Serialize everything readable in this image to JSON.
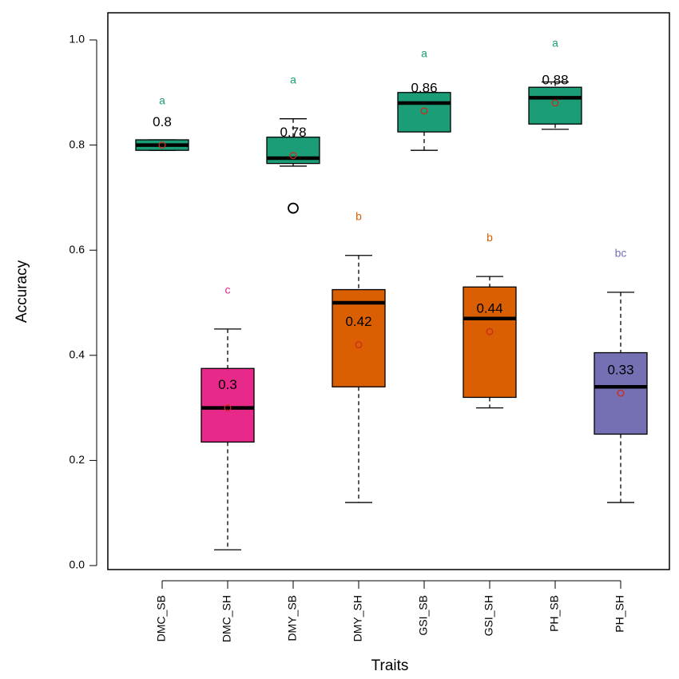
{
  "chart_data": {
    "type": "box",
    "xlabel": "Traits",
    "ylabel": "Accuracy",
    "ylim": [
      0,
      1.0
    ],
    "yticks": [
      "0.0",
      "0.2",
      "0.4",
      "0.6",
      "0.8",
      "1.0"
    ],
    "grid": false,
    "categories": [
      "DMC_SB",
      "DMC_SH",
      "DMY_SB",
      "DMY_SH",
      "GSI_SB",
      "GSI_SH",
      "PH_SB",
      "PH_SH"
    ],
    "boxes": [
      {
        "category": "DMC_SB",
        "min": 0.79,
        "q1": 0.79,
        "median": 0.8,
        "q3": 0.81,
        "max": 0.81,
        "mean": 0.8,
        "mean_label": "0.8",
        "letter": "a",
        "fill": "#1b9e77",
        "letter_color": "#1b9e77",
        "outliers": []
      },
      {
        "category": "DMC_SH",
        "min": 0.03,
        "q1": 0.235,
        "median": 0.3,
        "q3": 0.375,
        "max": 0.45,
        "mean": 0.3,
        "mean_label": "0.3",
        "letter": "c",
        "fill": "#e7298a",
        "letter_color": "#e7298a",
        "outliers": []
      },
      {
        "category": "DMY_SB",
        "min": 0.76,
        "q1": 0.765,
        "median": 0.775,
        "q3": 0.815,
        "max": 0.85,
        "mean": 0.78,
        "mean_label": "0.78",
        "letter": "a",
        "fill": "#1b9e77",
        "letter_color": "#1b9e77",
        "outliers": [
          0.68
        ]
      },
      {
        "category": "DMY_SH",
        "min": 0.12,
        "q1": 0.34,
        "median": 0.5,
        "q3": 0.525,
        "max": 0.59,
        "mean": 0.42,
        "mean_label": "0.42",
        "letter": "b",
        "fill": "#d95f02",
        "letter_color": "#d95f02",
        "outliers": []
      },
      {
        "category": "GSI_SB",
        "min": 0.79,
        "q1": 0.825,
        "median": 0.88,
        "q3": 0.9,
        "max": 0.9,
        "mean": 0.865,
        "mean_label": "0.86",
        "letter": "a",
        "fill": "#1b9e77",
        "letter_color": "#1b9e77",
        "outliers": []
      },
      {
        "category": "GSI_SH",
        "min": 0.3,
        "q1": 0.32,
        "median": 0.47,
        "q3": 0.53,
        "max": 0.55,
        "mean": 0.445,
        "mean_label": "0.44",
        "letter": "b",
        "fill": "#d95f02",
        "letter_color": "#d95f02",
        "outliers": []
      },
      {
        "category": "PH_SB",
        "min": 0.83,
        "q1": 0.84,
        "median": 0.89,
        "q3": 0.91,
        "max": 0.92,
        "mean": 0.88,
        "mean_label": "0.88",
        "letter": "a",
        "fill": "#1b9e77",
        "letter_color": "#1b9e77",
        "outliers": []
      },
      {
        "category": "PH_SH",
        "min": 0.12,
        "q1": 0.25,
        "median": 0.34,
        "q3": 0.405,
        "max": 0.52,
        "mean": 0.328,
        "mean_label": "0.33",
        "letter": "bc",
        "fill": "#7570b3",
        "letter_color": "#7570b3",
        "outliers": []
      }
    ],
    "mean_marker_color": "#cc2a1e"
  }
}
